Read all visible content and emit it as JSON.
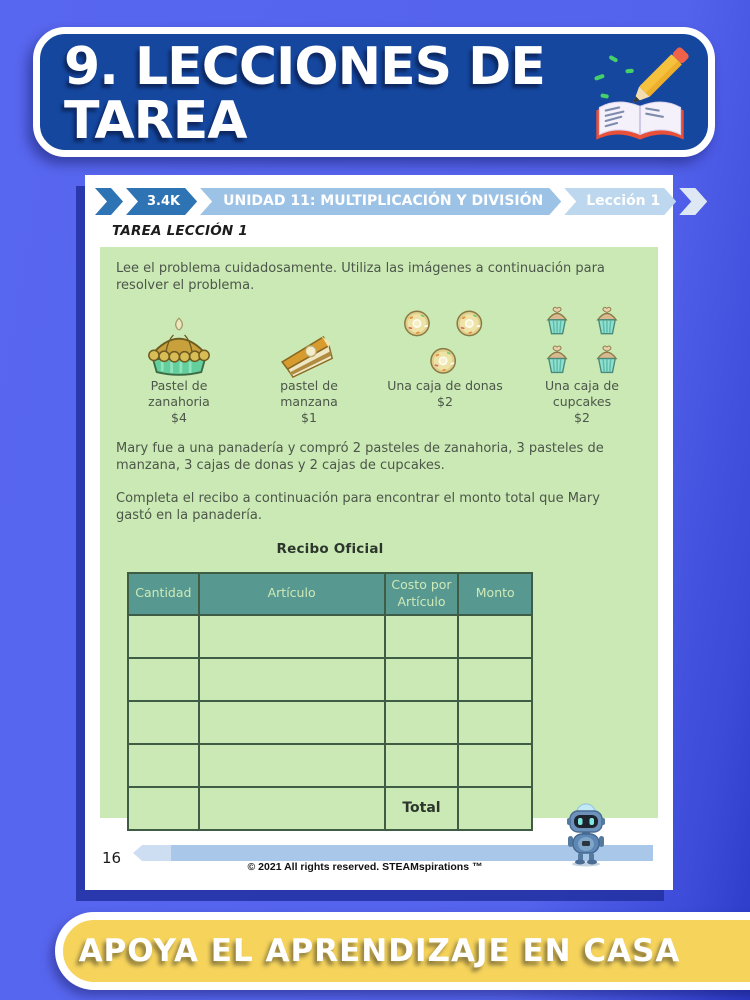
{
  "header": {
    "title_line1": "9. LECCIONES DE",
    "title_line2": "TAREA"
  },
  "worksheet": {
    "breadcrumb": {
      "views": "3.4K",
      "unit": "UNIDAD 11: MULTIPLICACIÓN Y DIVISIÓN",
      "lesson": "Lección 1"
    },
    "subtitle": "TAREA LECCIÓN 1",
    "intro": "Lee el problema cuidadosamente. Utiliza las imágenes a continuación para resolver el problema.",
    "items": [
      {
        "icon": "carrot-cake-pie-icon",
        "label": "Pastel de zanahoria",
        "price": "$4"
      },
      {
        "icon": "apple-pie-slice-icon",
        "label": "pastel de manzana",
        "price": "$1"
      },
      {
        "icon": "donut-box-icon",
        "label": "Una caja de donas",
        "price": "$2"
      },
      {
        "icon": "cupcake-box-icon",
        "label": "Una caja de cupcakes",
        "price": "$2"
      }
    ],
    "problem": "Mary fue a una panadería y compró 2 pasteles de zanahoria, 3 pasteles de manzana, 3 cajas de donas y 2 cajas de cupcakes.",
    "instruction": "Completa el recibo a continuación para encontrar el monto total que Mary gastó en la panadería.",
    "receipt": {
      "title": "Recibo Oficial",
      "columns": [
        "Cantidad",
        "Artículo",
        "Costo por Artículo",
        "Monto"
      ],
      "rows": 5,
      "total_label": "Total"
    },
    "footer": {
      "page_number": "16",
      "copyright": "© 2021 All rights reserved. STEAMspirations ™"
    }
  },
  "bottom_banner": {
    "text": "APOYA EL APRENDIZAJE EN CASA"
  },
  "colors": {
    "background_blue": "#5463ec",
    "banner_navy": "#15479f",
    "banner_yellow": "#f6d45c",
    "box_green": "#cbe9b4",
    "table_header_teal": "#579890",
    "table_border_green": "#3e5d44",
    "crumb_blue_dark": "#2e74b5",
    "crumb_blue_mid": "#9cc2e5",
    "crumb_blue_light": "#bdd7ee",
    "footer_bar_blue": "#a9c7e9"
  }
}
